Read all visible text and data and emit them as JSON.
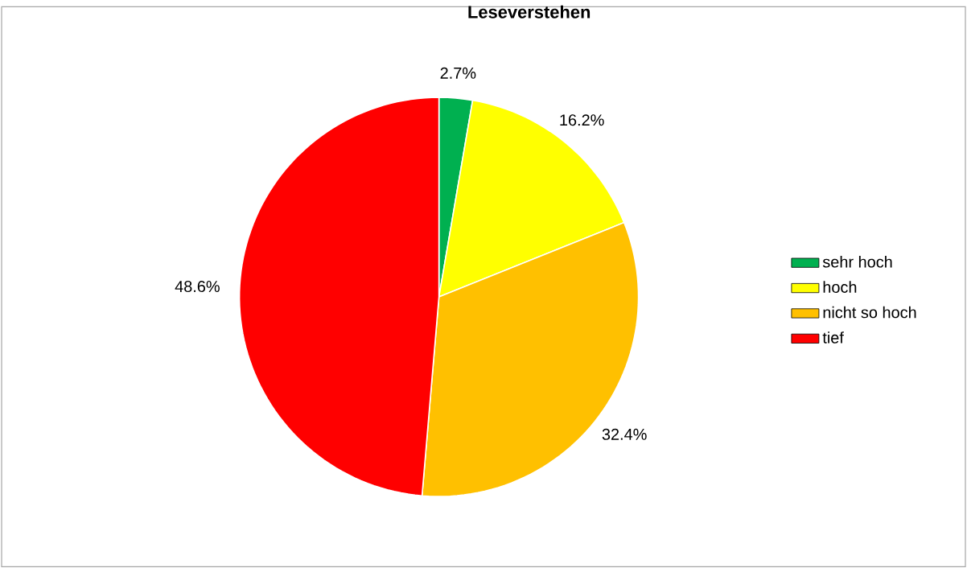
{
  "chart_data": {
    "type": "pie",
    "title": "Leseverstehen",
    "categories": [
      "sehr hoch",
      "hoch",
      "nicht so hoch",
      "tief"
    ],
    "values": [
      2.7,
      16.2,
      32.4,
      48.6
    ],
    "value_labels": [
      "2.7%",
      "16.2%",
      "32.4%",
      "48.6%"
    ],
    "colors": [
      "#00b050",
      "#ffff00",
      "#ffc000",
      "#ff0000"
    ],
    "legend": "right"
  }
}
